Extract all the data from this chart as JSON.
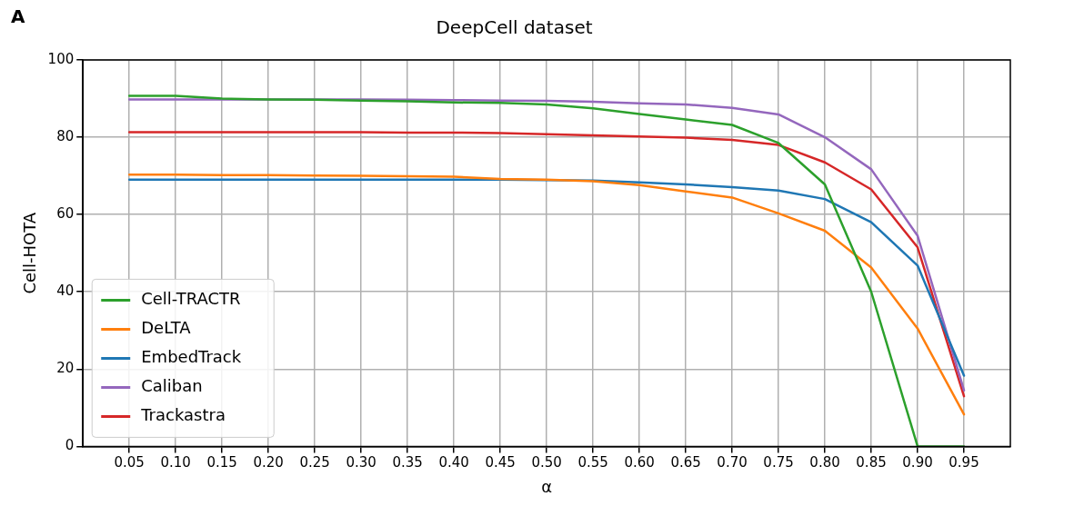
{
  "chart_data": {
    "type": "line",
    "title": "DeepCell dataset",
    "xlabel": "α",
    "ylabel": "Cell-HOTA",
    "annotations": [
      "A"
    ],
    "x": [
      0.05,
      0.1,
      0.15,
      0.2,
      0.25,
      0.3,
      0.35,
      0.4,
      0.45,
      0.5,
      0.55,
      0.6,
      0.65,
      0.7,
      0.75,
      0.8,
      0.85,
      0.9,
      0.95
    ],
    "xlim": [
      0,
      1
    ],
    "xticks": [
      {
        "value": 0.05,
        "label": "0.05"
      },
      {
        "value": 0.1,
        "label": "0.10"
      },
      {
        "value": 0.15,
        "label": "0.15"
      },
      {
        "value": 0.2,
        "label": "0.20"
      },
      {
        "value": 0.25,
        "label": "0.25"
      },
      {
        "value": 0.3,
        "label": "0.30"
      },
      {
        "value": 0.35,
        "label": "0.35"
      },
      {
        "value": 0.4,
        "label": "0.40"
      },
      {
        "value": 0.45,
        "label": "0.45"
      },
      {
        "value": 0.5,
        "label": "0.50"
      },
      {
        "value": 0.55,
        "label": "0.55"
      },
      {
        "value": 0.6,
        "label": "0.60"
      },
      {
        "value": 0.65,
        "label": "0.65"
      },
      {
        "value": 0.7,
        "label": "0.70"
      },
      {
        "value": 0.75,
        "label": "0.75"
      },
      {
        "value": 0.8,
        "label": "0.80"
      },
      {
        "value": 0.85,
        "label": "0.85"
      },
      {
        "value": 0.9,
        "label": "0.90"
      },
      {
        "value": 0.95,
        "label": "0.95"
      }
    ],
    "ylim": [
      0,
      100
    ],
    "yticks": [
      0,
      20,
      40,
      60,
      80,
      100
    ],
    "grid": true,
    "legend": "bottom left",
    "marker": "none",
    "line_style": "solid",
    "series": [
      {
        "name": "Cell-TRACTR",
        "color": "#2ca02c",
        "values": [
          90.7,
          90.7,
          90,
          89.8,
          89.7,
          89.5,
          89.3,
          89,
          88.9,
          88.5,
          87.5,
          86,
          84.6,
          83.2,
          78.5,
          67.8,
          40,
          0,
          0
        ]
      },
      {
        "name": "DeLTA",
        "color": "#ff7f0e",
        "values": [
          70.3,
          70.3,
          70.2,
          70.2,
          70.1,
          70,
          69.9,
          69.8,
          69.2,
          69,
          68.6,
          67.6,
          66,
          64.4,
          60.3,
          55.8,
          46.3,
          30.5,
          8.3
        ]
      },
      {
        "name": "EmbedTrack",
        "color": "#1f77b4",
        "values": [
          69,
          69,
          69,
          69,
          69,
          69,
          69,
          69,
          69,
          68.9,
          68.8,
          68.3,
          67.8,
          67.1,
          66.2,
          64,
          58,
          46.8,
          18.3
        ]
      },
      {
        "name": "Caliban",
        "color": "#9467bd",
        "values": [
          89.8,
          89.8,
          89.8,
          89.8,
          89.8,
          89.8,
          89.7,
          89.6,
          89.5,
          89.4,
          89.2,
          88.8,
          88.5,
          87.6,
          85.9,
          80,
          71.7,
          54.5,
          14.5
        ]
      },
      {
        "name": "Trackastra",
        "color": "#d62728",
        "values": [
          81.3,
          81.3,
          81.3,
          81.3,
          81.3,
          81.3,
          81.2,
          81.2,
          81.1,
          80.8,
          80.5,
          80.2,
          79.9,
          79.3,
          78,
          73.5,
          66.5,
          51.5,
          13
        ]
      }
    ]
  }
}
